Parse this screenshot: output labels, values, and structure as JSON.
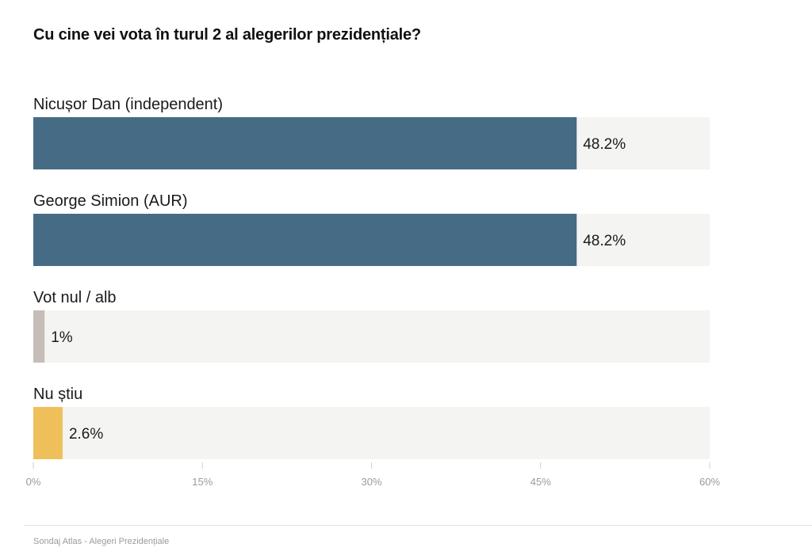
{
  "title": "Cu cine vei vota în turul 2 al alegerilor prezidențiale?",
  "footer": "Sondaj Atlas - Alegeri Prezidențiale",
  "chart_data": {
    "type": "bar",
    "orientation": "horizontal",
    "categories": [
      "Nicușor Dan (independent)",
      "George Simion (AUR)",
      "Vot nul / alb",
      "Nu știu"
    ],
    "values": [
      48.2,
      48.2,
      1,
      2.6
    ],
    "value_labels": [
      "48.2%",
      "48.2%",
      "1%",
      "2.6%"
    ],
    "colors": [
      "#466b85",
      "#466b85",
      "#c6bdb9",
      "#efc05a"
    ],
    "track_color": "#f4f4f2",
    "xlim": [
      0,
      60
    ],
    "xticks": [
      0,
      15,
      30,
      45,
      60
    ],
    "xtick_labels": [
      "0%",
      "15%",
      "30%",
      "45%",
      "60%"
    ],
    "grid": false,
    "legend": "none"
  }
}
